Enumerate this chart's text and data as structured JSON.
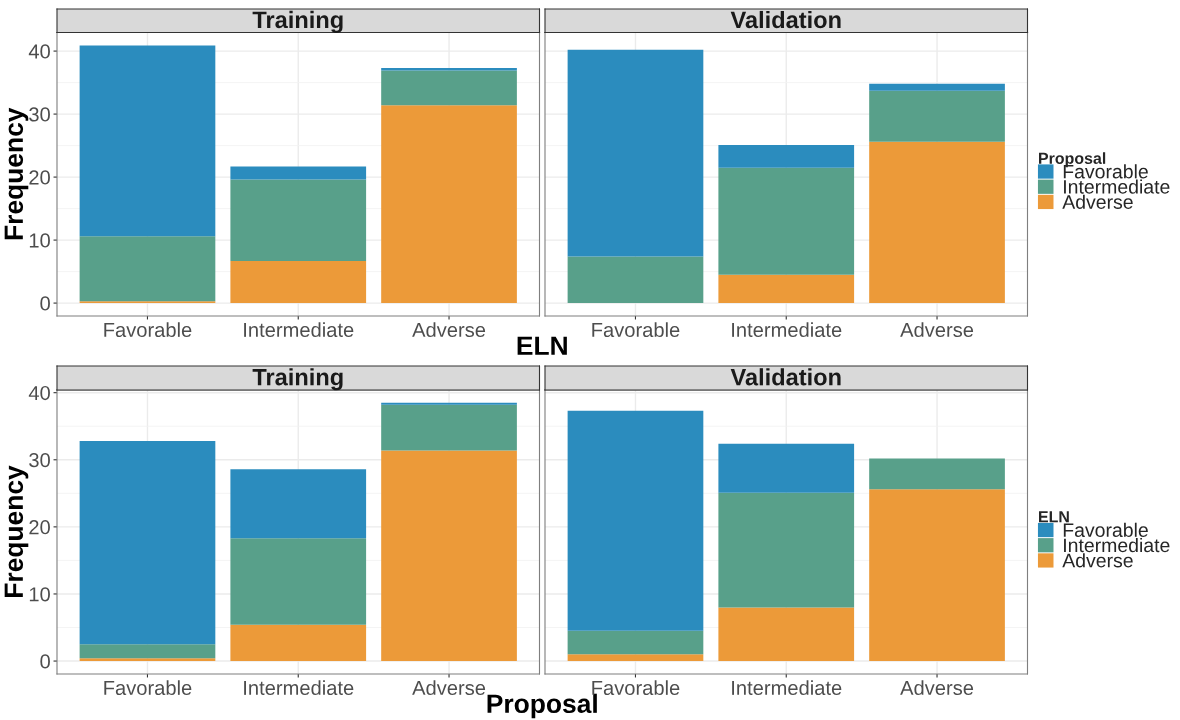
{
  "chart_data": [
    {
      "type": "bar",
      "title": "Training",
      "xlabel": "ELN",
      "ylabel": "Frequency",
      "categories": [
        "Favorable",
        "Intermediate",
        "Adverse"
      ],
      "stacked": true,
      "series": [
        {
          "color": "#ec9a39",
          "values": [
            0.3,
            6.7,
            31.4
          ]
        },
        {
          "color": "#58a08a",
          "values": [
            10.3,
            12.9,
            5.5
          ]
        },
        {
          "color": "#2b8cbe",
          "values": [
            30.3,
            2.1,
            0.4
          ]
        }
      ],
      "ylim": [
        -2.05,
        42.95
      ],
      "yticks": [
        0,
        10,
        20,
        30,
        40
      ],
      "grid": true
    },
    {
      "type": "bar",
      "title": "Validation",
      "legend_title": "Proposal",
      "categories": [
        "Favorable",
        "Intermediate",
        "Adverse"
      ],
      "stacked": true,
      "series": [
        {
          "name": "Adverse",
          "color": "#ec9a39",
          "values": [
            null,
            4.5,
            25.6
          ]
        },
        {
          "name": "Intermediate",
          "color": "#58a08a",
          "values": [
            7.4,
            17.0,
            8.1
          ]
        },
        {
          "name": "Favorable",
          "color": "#2b8cbe",
          "values": [
            32.8,
            3.6,
            1.1
          ]
        }
      ],
      "ylim": [
        -2.05,
        42.95
      ],
      "yticks": [
        0,
        10,
        20,
        30,
        40
      ],
      "tick_labels": "x",
      "grid": true,
      "legend": "right"
    },
    {
      "type": "bar",
      "title": "Training",
      "xlabel": "Proposal",
      "ylabel": "Frequency",
      "categories": [
        "Favorable",
        "Intermediate",
        "Adverse"
      ],
      "stacked": true,
      "series": [
        {
          "color": "#ec9a39",
          "values": [
            0.4,
            5.4,
            31.4
          ]
        },
        {
          "color": "#58a08a",
          "values": [
            2.1,
            12.9,
            6.8
          ]
        },
        {
          "color": "#2b8cbe",
          "values": [
            30.3,
            10.3,
            0.3
          ]
        }
      ],
      "ylim": [
        -1.93,
        40.4
      ],
      "yticks": [
        0,
        10,
        20,
        30,
        40
      ],
      "grid": true
    },
    {
      "type": "bar",
      "title": "Validation",
      "legend_title": "ELN",
      "categories": [
        "Favorable",
        "Intermediate",
        "Adverse"
      ],
      "stacked": true,
      "series": [
        {
          "name": "Adverse",
          "color": "#ec9a39",
          "values": [
            1.0,
            8.0,
            25.6
          ]
        },
        {
          "name": "Intermediate",
          "color": "#58a08a",
          "values": [
            3.5,
            17.1,
            4.6
          ]
        },
        {
          "name": "Favorable",
          "color": "#2b8cbe",
          "values": [
            32.8,
            7.3,
            null
          ]
        }
      ],
      "ylim": [
        -1.93,
        40.4
      ],
      "yticks": [
        0,
        10,
        20,
        30,
        40
      ],
      "tick_labels": "x",
      "grid": true,
      "legend": "right"
    }
  ]
}
